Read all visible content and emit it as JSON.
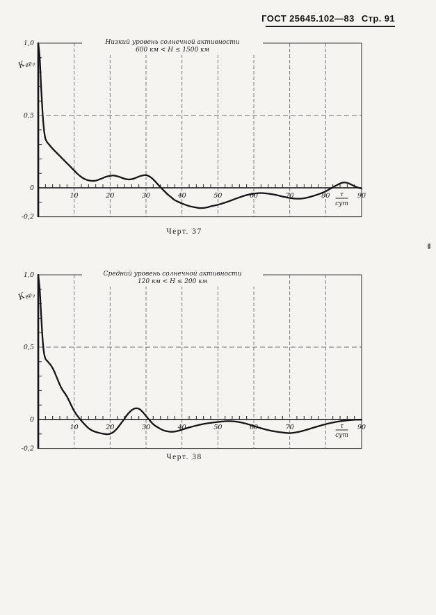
{
  "header": {
    "standard": "ГОСТ 25645.102—83",
    "page": "Стр. 91"
  },
  "chart_data": [
    {
      "type": "line",
      "figure_number": "Черт. 37",
      "title": "Низкий уровень солнечной активности",
      "subtitle": "600 км < Н ≤ 1500 км",
      "y_axis_symbol": {
        "base": "К",
        "sub": "вр",
        "subsub": "ρ"
      },
      "x_unit": {
        "numerator": "τ",
        "denominator": "сут",
        "position": 84.5
      },
      "xlim": [
        0,
        90
      ],
      "ylim": [
        -0.2,
        1.0
      ],
      "x_gridline_step": 10,
      "x_minor_tick_step": 2,
      "y_minor_tick_step": 0.1,
      "y_gridlines": [
        1.0,
        0.5,
        0,
        -0.2
      ],
      "x_ticks": [
        {
          "v": 10,
          "label": "10"
        },
        {
          "v": 20,
          "label": "20"
        },
        {
          "v": 30,
          "label": "30"
        },
        {
          "v": 40,
          "label": "40"
        },
        {
          "v": 50,
          "label": "50"
        },
        {
          "v": 60,
          "label": "60"
        },
        {
          "v": 70,
          "label": "70"
        },
        {
          "v": 80,
          "label": "80"
        },
        {
          "v": 90,
          "label": "90"
        }
      ],
      "y_ticks": [
        {
          "v": 1.0,
          "label": "1,0"
        },
        {
          "v": 0.5,
          "label": "0,5"
        },
        {
          "v": 0,
          "label": "0"
        },
        {
          "v": -0.2,
          "label": "-0,2"
        }
      ],
      "points": [
        [
          0,
          1.0
        ],
        [
          0.4,
          0.9
        ],
        [
          0.8,
          0.7
        ],
        [
          1.2,
          0.52
        ],
        [
          1.6,
          0.4
        ],
        [
          2,
          0.34
        ],
        [
          2.5,
          0.315
        ],
        [
          3,
          0.3
        ],
        [
          4,
          0.27
        ],
        [
          5,
          0.245
        ],
        [
          6,
          0.22
        ],
        [
          7,
          0.195
        ],
        [
          8,
          0.17
        ],
        [
          9,
          0.145
        ],
        [
          10,
          0.12
        ],
        [
          11,
          0.095
        ],
        [
          12,
          0.075
        ],
        [
          13,
          0.06
        ],
        [
          14,
          0.052
        ],
        [
          15,
          0.048
        ],
        [
          16,
          0.05
        ],
        [
          17,
          0.058
        ],
        [
          18,
          0.068
        ],
        [
          19,
          0.078
        ],
        [
          20,
          0.083
        ],
        [
          21,
          0.085
        ],
        [
          22,
          0.08
        ],
        [
          23,
          0.072
        ],
        [
          24,
          0.063
        ],
        [
          25,
          0.058
        ],
        [
          26,
          0.06
        ],
        [
          27,
          0.068
        ],
        [
          28,
          0.078
        ],
        [
          29,
          0.085
        ],
        [
          30,
          0.088
        ],
        [
          31,
          0.078
        ],
        [
          32,
          0.058
        ],
        [
          33,
          0.032
        ],
        [
          34,
          0.005
        ],
        [
          35,
          -0.02
        ],
        [
          36,
          -0.045
        ],
        [
          37,
          -0.065
        ],
        [
          38,
          -0.085
        ],
        [
          40,
          -0.108
        ],
        [
          42,
          -0.126
        ],
        [
          44,
          -0.136
        ],
        [
          45,
          -0.14
        ],
        [
          46,
          -0.139
        ],
        [
          47,
          -0.135
        ],
        [
          48,
          -0.128
        ],
        [
          50,
          -0.117
        ],
        [
          52,
          -0.102
        ],
        [
          54,
          -0.084
        ],
        [
          56,
          -0.066
        ],
        [
          58,
          -0.05
        ],
        [
          60,
          -0.04
        ],
        [
          62,
          -0.036
        ],
        [
          64,
          -0.04
        ],
        [
          66,
          -0.048
        ],
        [
          68,
          -0.06
        ],
        [
          70,
          -0.07
        ],
        [
          72,
          -0.075
        ],
        [
          74,
          -0.072
        ],
        [
          76,
          -0.06
        ],
        [
          78,
          -0.044
        ],
        [
          80,
          -0.024
        ],
        [
          82,
          0.004
        ],
        [
          84,
          0.03
        ],
        [
          85,
          0.037
        ],
        [
          86,
          0.034
        ],
        [
          87,
          0.024
        ],
        [
          88,
          0.012
        ],
        [
          89,
          0.002
        ],
        [
          90,
          -0.004
        ]
      ]
    },
    {
      "type": "line",
      "figure_number": "Черт. 38",
      "title": "Средний уровень солнечной активности",
      "subtitle": "120 км < Н ≤ 200 км",
      "y_axis_symbol": {
        "base": "К",
        "sub": "вр",
        "subsub": "ρ"
      },
      "x_unit": {
        "numerator": "τ",
        "denominator": "сут",
        "position": 84.5
      },
      "xlim": [
        0,
        90
      ],
      "ylim": [
        -0.2,
        1.0
      ],
      "x_gridline_step": 10,
      "x_minor_tick_step": 2,
      "y_minor_tick_step": 0.1,
      "y_gridlines": [
        1.0,
        0.5,
        0,
        -0.2
      ],
      "x_ticks": [
        {
          "v": 10,
          "label": "10"
        },
        {
          "v": 20,
          "label": "20"
        },
        {
          "v": 30,
          "label": "30"
        },
        {
          "v": 40,
          "label": "40"
        },
        {
          "v": 50,
          "label": "50"
        },
        {
          "v": 60,
          "label": "60"
        },
        {
          "v": 70,
          "label": "70"
        },
        {
          "v": 90,
          "label": "90"
        }
      ],
      "y_ticks": [
        {
          "v": 1.0,
          "label": "1,0"
        },
        {
          "v": 0.5,
          "label": "0,5"
        },
        {
          "v": 0,
          "label": "0"
        },
        {
          "v": -0.2,
          "label": "-0,2"
        }
      ],
      "points": [
        [
          0,
          1.0
        ],
        [
          0.4,
          0.9
        ],
        [
          0.8,
          0.73
        ],
        [
          1.2,
          0.56
        ],
        [
          1.6,
          0.46
        ],
        [
          2,
          0.42
        ],
        [
          2.5,
          0.405
        ],
        [
          3,
          0.39
        ],
        [
          3.5,
          0.375
        ],
        [
          4,
          0.355
        ],
        [
          4.5,
          0.33
        ],
        [
          5,
          0.3
        ],
        [
          5.5,
          0.27
        ],
        [
          6,
          0.24
        ],
        [
          6.5,
          0.215
        ],
        [
          7,
          0.195
        ],
        [
          7.5,
          0.178
        ],
        [
          8,
          0.158
        ],
        [
          8.5,
          0.134
        ],
        [
          9,
          0.108
        ],
        [
          9.5,
          0.082
        ],
        [
          10,
          0.058
        ],
        [
          11,
          0.022
        ],
        [
          12,
          -0.008
        ],
        [
          13,
          -0.036
        ],
        [
          14,
          -0.06
        ],
        [
          15,
          -0.076
        ],
        [
          16,
          -0.086
        ],
        [
          17,
          -0.093
        ],
        [
          18,
          -0.098
        ],
        [
          19,
          -0.102
        ],
        [
          20,
          -0.099
        ],
        [
          21,
          -0.085
        ],
        [
          22,
          -0.06
        ],
        [
          23,
          -0.028
        ],
        [
          24,
          0.006
        ],
        [
          25,
          0.04
        ],
        [
          26,
          0.064
        ],
        [
          27,
          0.077
        ],
        [
          28,
          0.074
        ],
        [
          29,
          0.054
        ],
        [
          30,
          0.024
        ],
        [
          31,
          -0.006
        ],
        [
          32,
          -0.032
        ],
        [
          33,
          -0.05
        ],
        [
          34,
          -0.065
        ],
        [
          35,
          -0.076
        ],
        [
          36,
          -0.082
        ],
        [
          37,
          -0.085
        ],
        [
          38,
          -0.083
        ],
        [
          39,
          -0.078
        ],
        [
          40,
          -0.07
        ],
        [
          42,
          -0.055
        ],
        [
          44,
          -0.042
        ],
        [
          46,
          -0.031
        ],
        [
          48,
          -0.023
        ],
        [
          50,
          -0.017
        ],
        [
          52,
          -0.012
        ],
        [
          54,
          -0.012
        ],
        [
          56,
          -0.018
        ],
        [
          58,
          -0.03
        ],
        [
          60,
          -0.045
        ],
        [
          62,
          -0.06
        ],
        [
          64,
          -0.073
        ],
        [
          66,
          -0.083
        ],
        [
          68,
          -0.09
        ],
        [
          70,
          -0.094
        ],
        [
          72,
          -0.088
        ],
        [
          74,
          -0.076
        ],
        [
          76,
          -0.061
        ],
        [
          78,
          -0.046
        ],
        [
          80,
          -0.032
        ],
        [
          82,
          -0.021
        ],
        [
          84,
          -0.012
        ],
        [
          86,
          -0.006
        ],
        [
          88,
          -0.002
        ],
        [
          90,
          -0.001
        ]
      ]
    }
  ]
}
